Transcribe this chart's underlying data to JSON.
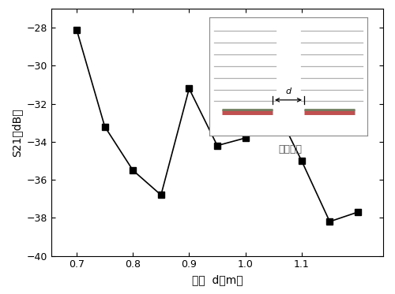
{
  "x": [
    0.7,
    0.75,
    0.8,
    0.85,
    0.9,
    0.95,
    1.0,
    1.05,
    1.1,
    1.15,
    1.2
  ],
  "y": [
    -28.1,
    -33.2,
    -35.5,
    -36.8,
    -31.2,
    -34.2,
    -33.8,
    -32.0,
    -35.0,
    -38.2,
    -37.7
  ],
  "xlabel": "间距  d（m）",
  "ylabel": "S21（dB）",
  "xlim": [
    0.655,
    1.245
  ],
  "ylim": [
    -40,
    -27
  ],
  "yticks": [
    -40,
    -38,
    -36,
    -34,
    -32,
    -30,
    -28
  ],
  "xticks": [
    0.7,
    0.8,
    0.9,
    1.0,
    1.1
  ],
  "line_color": "#000000",
  "marker": "s",
  "marker_color": "#000000",
  "marker_size": 6,
  "bg_color": "#ffffff",
  "inset_label": "共线排列",
  "inset_bg": "#ffffff"
}
